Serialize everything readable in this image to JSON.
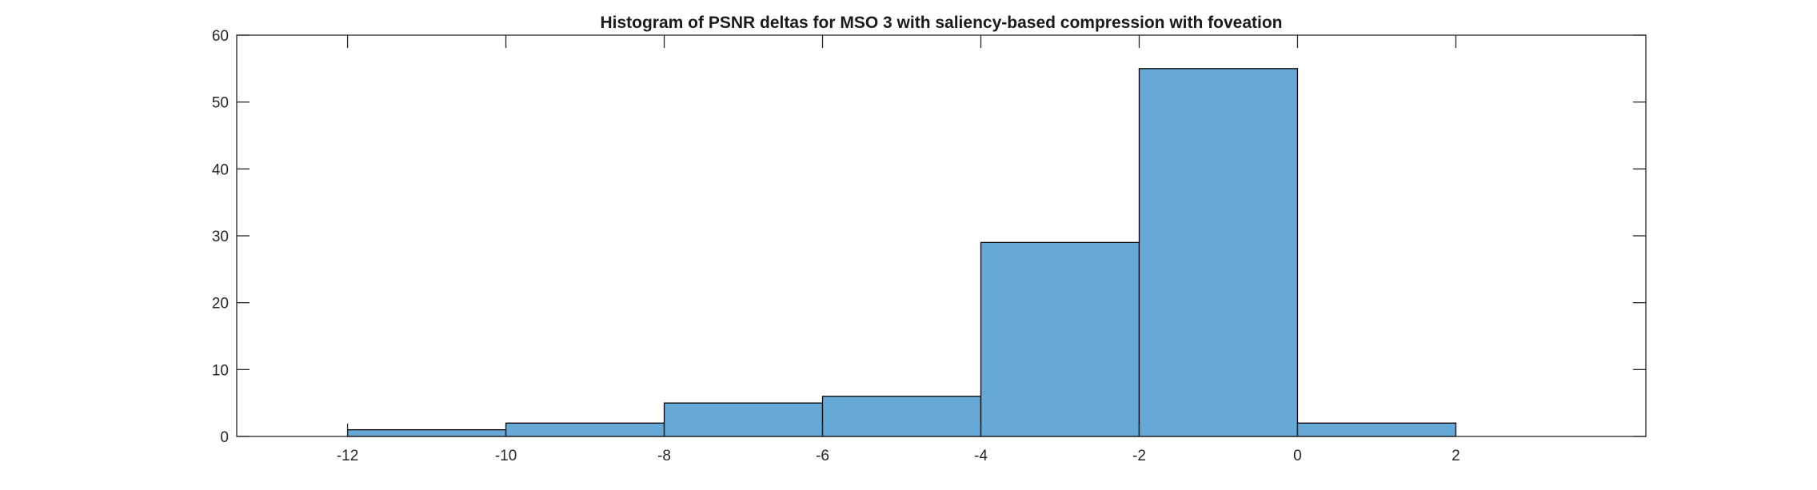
{
  "chart_data": {
    "type": "bar",
    "subtype": "histogram",
    "title": "Histogram of PSNR deltas for MSO 3 with saliency-based compression with foveation",
    "xlabel": "",
    "ylabel": "",
    "xlim": [
      -13.4,
      4.4
    ],
    "ylim": [
      0,
      60
    ],
    "x_ticks": [
      -12,
      -10,
      -8,
      -6,
      -4,
      -2,
      0,
      2
    ],
    "y_ticks": [
      0,
      10,
      20,
      30,
      40,
      50,
      60
    ],
    "bin_edges": [
      -12,
      -10,
      -8,
      -6,
      -4,
      -2,
      0,
      2
    ],
    "counts": [
      1,
      2,
      5,
      6,
      29,
      55,
      2
    ],
    "bar_color": "#66a9d6",
    "edge_color": "#000000",
    "grid": false,
    "legend": "none"
  }
}
